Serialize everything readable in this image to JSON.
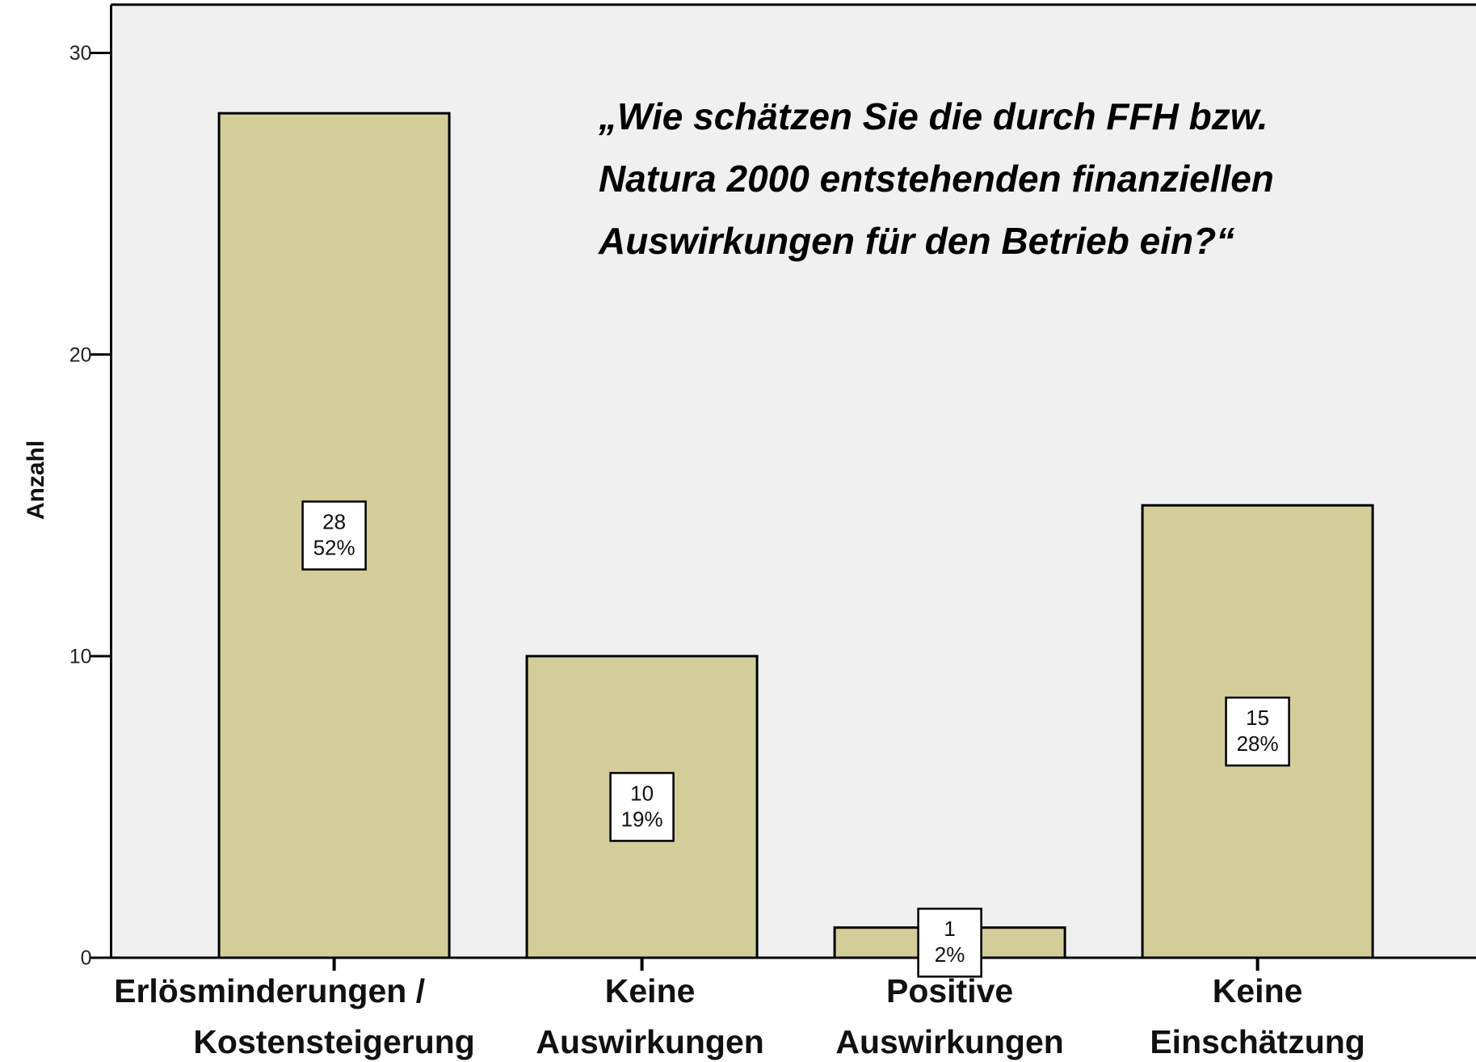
{
  "chart_data": {
    "type": "bar",
    "title": [
      "„Wie schätzen Sie die durch FFH bzw.",
      "Natura 2000 entstehenden finanziellen",
      "Auswirkungen für den Betrieb ein?“"
    ],
    "y_label": "Anzahl",
    "categories": [
      [
        "Erlösminderungen /",
        "Kostensteigerung"
      ],
      [
        "Keine",
        "Auswirkungen"
      ],
      [
        "Positive",
        "Auswirkungen"
      ],
      [
        "Keine",
        "Einschätzung"
      ]
    ],
    "values": [
      28,
      10,
      1,
      15
    ],
    "percentage_labels": [
      "52%",
      "19%",
      "2%",
      "28%"
    ],
    "color": "#d3ce99",
    "ylim": [
      0,
      31.6
    ],
    "yticks": [
      0,
      10,
      20,
      30
    ],
    "grid": false
  }
}
